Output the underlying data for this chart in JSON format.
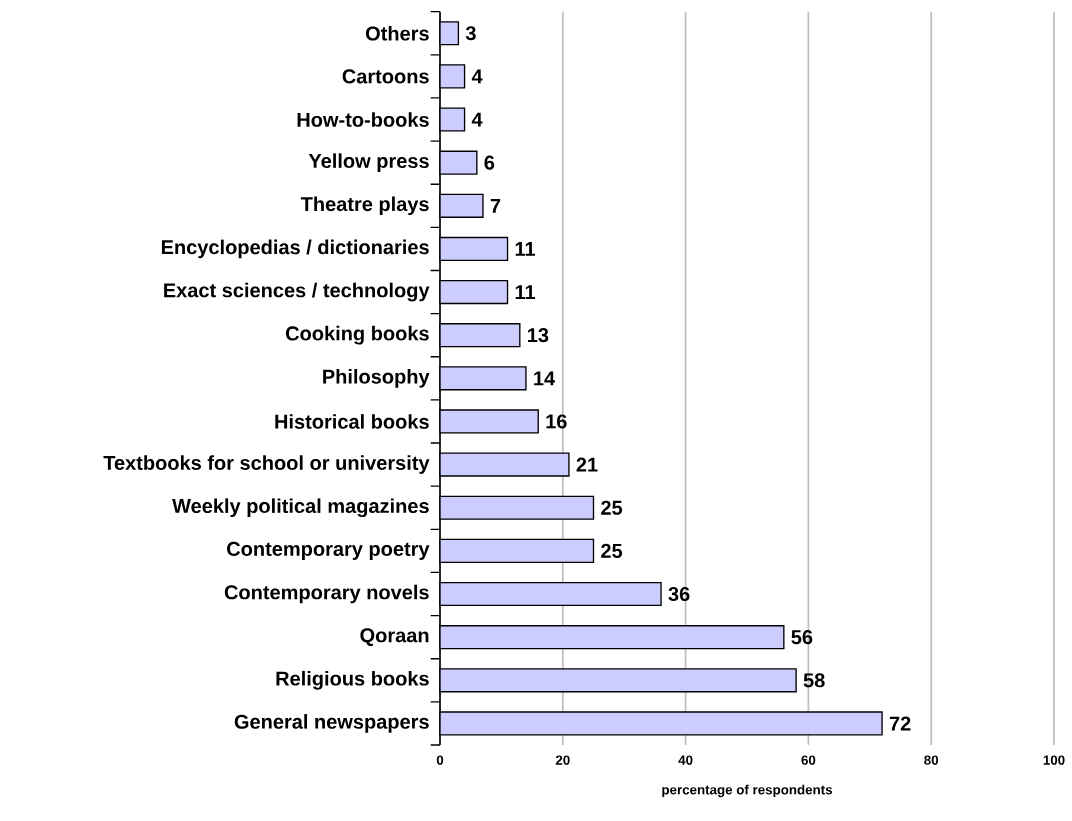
{
  "chart_data": {
    "type": "bar",
    "orientation": "horizontal",
    "categories": [
      "Others",
      "Cartoons",
      "How-to-books",
      "Yellow press",
      "Theatre plays",
      "Encyclopedias / dictionaries",
      "Exact sciences / technology",
      "Cooking books",
      "Philosophy",
      "Historical books",
      "Textbooks for school or university",
      "Weekly political magazines",
      "Contemporary poetry",
      "Contemporary novels",
      "Qoraan",
      "Religious books",
      "General newspapers"
    ],
    "values": [
      3,
      4,
      4,
      6,
      7,
      11,
      11,
      13,
      14,
      16,
      21,
      25,
      25,
      36,
      56,
      58,
      72
    ],
    "color": "#ccccff",
    "xlabel": "percentage of respondents",
    "xlim": [
      0,
      100
    ],
    "xticks": [
      0,
      20,
      40,
      60,
      80,
      100
    ],
    "grid": "x",
    "data_labels": true
  }
}
